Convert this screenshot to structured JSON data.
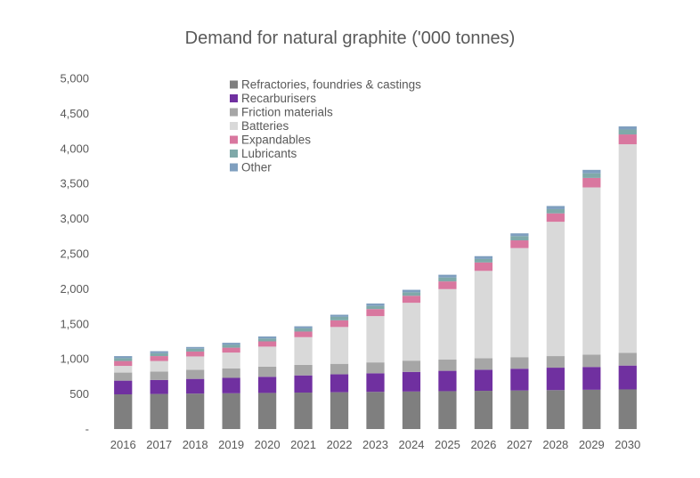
{
  "chart_data": {
    "type": "bar",
    "stacked": true,
    "title": "Demand for natural graphite ('000 tonnes)",
    "xlabel": "",
    "ylabel": "",
    "ylim": [
      0,
      5000
    ],
    "yticks": [
      0,
      500,
      1000,
      1500,
      2000,
      2500,
      3000,
      3500,
      4000,
      4500,
      5000
    ],
    "ytick_labels": [
      "-",
      "500",
      "1,000",
      "1,500",
      "2,000",
      "2,500",
      "3,000",
      "3,500",
      "4,000",
      "4,500",
      "5,000"
    ],
    "grid": false,
    "legend_position": "top-center",
    "categories": [
      "2016",
      "2017",
      "2018",
      "2019",
      "2020",
      "2021",
      "2022",
      "2023",
      "2024",
      "2025",
      "2026",
      "2027",
      "2028",
      "2029",
      "2030"
    ],
    "series": [
      {
        "name": "Refractories, foundries & castings",
        "color": "#7f7f7f",
        "values": [
          495,
          500,
          505,
          510,
          515,
          520,
          525,
          530,
          535,
          540,
          545,
          550,
          555,
          560,
          565
        ]
      },
      {
        "name": "Recarburisers",
        "color": "#7030a0",
        "values": [
          195,
          200,
          210,
          220,
          230,
          245,
          255,
          265,
          280,
          290,
          300,
          310,
          320,
          325,
          340
        ]
      },
      {
        "name": "Friction materials",
        "color": "#a6a6a6",
        "values": [
          115,
          120,
          130,
          135,
          145,
          150,
          150,
          155,
          160,
          160,
          165,
          165,
          165,
          175,
          180
        ]
      },
      {
        "name": "Batteries",
        "color": "#d9d9d9",
        "values": [
          95,
          150,
          190,
          225,
          285,
          395,
          525,
          660,
          825,
          1005,
          1245,
          1555,
          1915,
          2385,
          2975
        ]
      },
      {
        "name": "Expandables",
        "color": "#d9779f",
        "values": [
          70,
          70,
          70,
          70,
          75,
          80,
          95,
          100,
          100,
          110,
          120,
          110,
          120,
          135,
          140
        ]
      },
      {
        "name": "Lubricants",
        "color": "#7fa9a9",
        "values": [
          40,
          40,
          40,
          40,
          40,
          45,
          50,
          45,
          50,
          55,
          50,
          60,
          60,
          65,
          70
        ]
      },
      {
        "name": "Other",
        "color": "#7f9fbf",
        "values": [
          30,
          30,
          25,
          30,
          30,
          30,
          30,
          35,
          35,
          40,
          40,
          40,
          45,
          50,
          45
        ]
      }
    ]
  }
}
